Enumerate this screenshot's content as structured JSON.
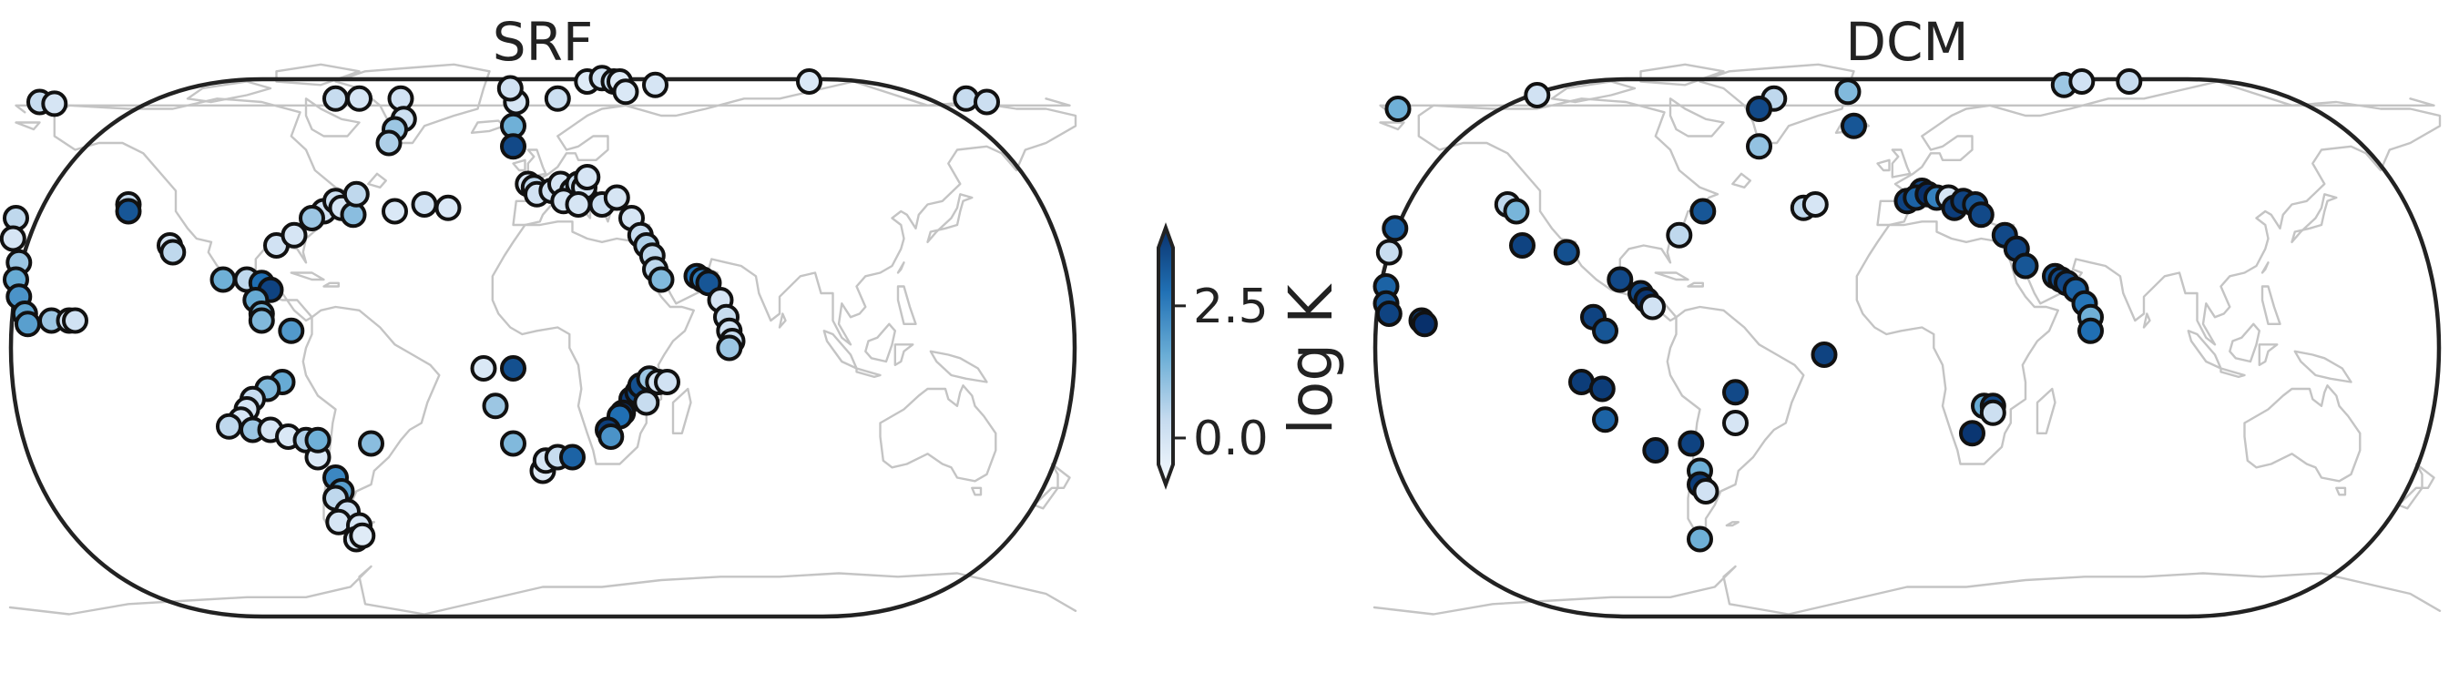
{
  "maps": [
    {
      "title": "SRF",
      "stations": [
        [
          -170,
          72,
          0.5
        ],
        [
          -165,
          71.5,
          0.2
        ],
        [
          -178,
          38,
          0.6
        ],
        [
          -179,
          32,
          0.2
        ],
        [
          -177,
          25,
          1.0
        ],
        [
          -178,
          20,
          1.6
        ],
        [
          -177,
          15,
          2.0
        ],
        [
          -175,
          10,
          1.7
        ],
        [
          -174,
          7,
          1.8
        ],
        [
          -166,
          8,
          1.0
        ],
        [
          -160,
          8,
          0.2
        ],
        [
          -158,
          8,
          0.3
        ],
        [
          -140,
          42,
          0.5
        ],
        [
          -140,
          40,
          3.0
        ],
        [
          -126,
          30,
          0.2
        ],
        [
          -125,
          28,
          0.6
        ],
        [
          -108,
          20,
          1.5
        ],
        [
          -100,
          20,
          0.6
        ],
        [
          -95,
          19,
          2.6
        ],
        [
          -92,
          17,
          3.3
        ],
        [
          -97,
          14,
          1.6
        ],
        [
          -95,
          10,
          1.5
        ],
        [
          -95,
          8,
          1.3
        ],
        [
          -85,
          5,
          1.9
        ],
        [
          -88,
          -10,
          1.6
        ],
        [
          -93,
          -12,
          1.3
        ],
        [
          -98,
          -15,
          0.5
        ],
        [
          -100,
          -18,
          0.2
        ],
        [
          -102,
          -21,
          0.2
        ],
        [
          -106,
          -23,
          0.6
        ],
        [
          -98,
          -24,
          1.0
        ],
        [
          -92,
          -24,
          0.2
        ],
        [
          -86,
          -26,
          0.1
        ],
        [
          -80,
          -27,
          0.8
        ],
        [
          -76,
          -32,
          0.1
        ],
        [
          -76,
          -27,
          1.5
        ],
        [
          -70,
          -38,
          2.2
        ],
        [
          -68,
          -42,
          1.8
        ],
        [
          -70,
          -44,
          0.6
        ],
        [
          -66,
          -48,
          0.4
        ],
        [
          -69,
          -51,
          0.2
        ],
        [
          -62,
          -52,
          0.2
        ],
        [
          -63,
          -56,
          0.1
        ],
        [
          -61,
          -55,
          0.0
        ],
        [
          -58,
          -28,
          1.2
        ],
        [
          -90,
          30,
          0.3
        ],
        [
          -84,
          33,
          0.2
        ],
        [
          -74,
          40,
          0.3
        ],
        [
          -70,
          43,
          0.4
        ],
        [
          -68,
          41,
          0.2
        ],
        [
          -64,
          39,
          1.2
        ],
        [
          -78,
          38,
          1.0
        ],
        [
          -63,
          45,
          0.6
        ],
        [
          -50,
          40,
          0.1
        ],
        [
          -40,
          42,
          0.3
        ],
        [
          -32,
          41,
          0.1
        ],
        [
          -70,
          73,
          0.5
        ],
        [
          -62,
          73,
          0.2
        ],
        [
          -48,
          73,
          0.3
        ],
        [
          -47,
          67,
          0.4
        ],
        [
          -50,
          64,
          1.0
        ],
        [
          -52,
          60,
          0.8
        ],
        [
          -10,
          65,
          1.5
        ],
        [
          -10,
          59,
          3.2
        ],
        [
          -9,
          72,
          0.2
        ],
        [
          -11,
          76,
          0.3
        ],
        [
          15,
          78,
          0.0
        ],
        [
          20,
          79,
          0.3
        ],
        [
          24,
          78,
          0.5
        ],
        [
          26,
          78,
          0.0
        ],
        [
          28,
          75,
          0.1
        ],
        [
          38,
          77,
          0.2
        ],
        [
          5,
          73,
          0.4
        ],
        [
          90,
          78,
          0.1
        ],
        [
          143,
          73,
          0.5
        ],
        [
          150,
          72,
          0.4
        ],
        [
          -5,
          48,
          0.1
        ],
        [
          -3,
          47,
          0.6
        ],
        [
          -2,
          45,
          0.3
        ],
        [
          3,
          46,
          0.3
        ],
        [
          6,
          48,
          0.2
        ],
        [
          10,
          46,
          0.6
        ],
        [
          12,
          48,
          0.5
        ],
        [
          14,
          45,
          0.5
        ],
        [
          14,
          47,
          0.2
        ],
        [
          7,
          43,
          0.2
        ],
        [
          15,
          50,
          0.2
        ],
        [
          12,
          42,
          0.2
        ],
        [
          20,
          42,
          0.4
        ],
        [
          25,
          44,
          0.2
        ],
        [
          30,
          38,
          0.2
        ],
        [
          33,
          33,
          0.5
        ],
        [
          35,
          30,
          0.8
        ],
        [
          37,
          27,
          0.6
        ],
        [
          38,
          23,
          0.6
        ],
        [
          40,
          20,
          1.3
        ],
        [
          52,
          21,
          2.6
        ],
        [
          54,
          20,
          2.4
        ],
        [
          56,
          19,
          3.0
        ],
        [
          60,
          14,
          0.2
        ],
        [
          62,
          9,
          0.5
        ],
        [
          63,
          5,
          0.3
        ],
        [
          64,
          2,
          0.5
        ],
        [
          63,
          0,
          1.0
        ],
        [
          -20,
          -6,
          0.1
        ],
        [
          -10,
          -6,
          3.1
        ],
        [
          -16,
          -17,
          1.0
        ],
        [
          -10,
          -28,
          1.3
        ],
        [
          0,
          -36,
          0.0
        ],
        [
          1,
          -33,
          0.2
        ],
        [
          5,
          -32,
          0.5
        ],
        [
          10,
          -32,
          2.8
        ],
        [
          30,
          -15,
          3.4
        ],
        [
          32,
          -13,
          3.1
        ],
        [
          33,
          -11,
          3.1
        ],
        [
          36,
          -9,
          1.0
        ],
        [
          39,
          -10,
          0.2
        ],
        [
          42,
          -10,
          0.3
        ],
        [
          35,
          -16,
          0.5
        ],
        [
          27,
          -19,
          3.5
        ],
        [
          26,
          -20,
          2.6
        ],
        [
          22,
          -24,
          3.4
        ],
        [
          23,
          -26,
          2.0
        ]
      ]
    },
    {
      "title": "DCM",
      "stations": [
        [
          -172,
          70,
          1.5
        ],
        [
          -125,
          74,
          0.3
        ],
        [
          -173,
          35,
          2.9
        ],
        [
          -175,
          28,
          0.5
        ],
        [
          -176,
          18,
          2.8
        ],
        [
          -176,
          13,
          3.0
        ],
        [
          -175,
          10,
          3.3
        ],
        [
          -164,
          8,
          3.3
        ],
        [
          -163,
          7,
          3.6
        ],
        [
          -135,
          42,
          0.6
        ],
        [
          -132,
          40,
          1.4
        ],
        [
          -130,
          30,
          3.3
        ],
        [
          -115,
          28,
          3.1
        ],
        [
          -97,
          20,
          3.2
        ],
        [
          -90,
          16,
          3.2
        ],
        [
          -88,
          14,
          3.5
        ],
        [
          -86,
          12,
          0.3
        ],
        [
          -106,
          9,
          3.3
        ],
        [
          -102,
          5,
          3.0
        ],
        [
          -110,
          -10,
          3.4
        ],
        [
          -103,
          -12,
          3.4
        ],
        [
          -102,
          -21,
          2.8
        ],
        [
          -85,
          -30,
          3.4
        ],
        [
          -73,
          -28,
          3.3
        ],
        [
          -70,
          -36,
          1.5
        ],
        [
          -70,
          -40,
          3.4
        ],
        [
          -68,
          -42,
          0.3
        ],
        [
          -70,
          -56,
          1.5
        ],
        [
          -58,
          -13,
          3.2
        ],
        [
          -58,
          -22,
          0.2
        ],
        [
          -28,
          -2,
          3.3
        ],
        [
          -77,
          33,
          0.6
        ],
        [
          -69,
          40,
          3.0
        ],
        [
          -35,
          41,
          0.6
        ],
        [
          -31,
          42,
          0.2
        ],
        [
          -50,
          59,
          1.1
        ],
        [
          -45,
          73,
          0.6
        ],
        [
          -18,
          65,
          3.0
        ],
        [
          -20,
          75,
          1.3
        ],
        [
          -50,
          70,
          3.2
        ],
        [
          0,
          43,
          3.3
        ],
        [
          5,
          46,
          3.2
        ],
        [
          3,
          44,
          2.8
        ],
        [
          7,
          45,
          3.6
        ],
        [
          10,
          44,
          2.3
        ],
        [
          14,
          44,
          0.2
        ],
        [
          16,
          41,
          3.4
        ],
        [
          19,
          43,
          3.3
        ],
        [
          23,
          42,
          3.0
        ],
        [
          25,
          39,
          3.2
        ],
        [
          33,
          33,
          3.2
        ],
        [
          37,
          29,
          3.3
        ],
        [
          40,
          24,
          3.0
        ],
        [
          50,
          21,
          3.0
        ],
        [
          52,
          20,
          3.2
        ],
        [
          54,
          19,
          3.2
        ],
        [
          57,
          17,
          2.8
        ],
        [
          60,
          13,
          2.5
        ],
        [
          62,
          9,
          1.5
        ],
        [
          62,
          5,
          2.6
        ],
        [
          26,
          -17,
          1.6
        ],
        [
          29,
          -17,
          3.2
        ],
        [
          29,
          -19,
          0.4
        ],
        [
          22,
          -25,
          3.5
        ],
        [
          53,
          77,
          1.0
        ],
        [
          59,
          78,
          0.3
        ],
        [
          75,
          78,
          0.5
        ]
      ]
    }
  ],
  "colorbar": {
    "label": "log K",
    "ticks": [
      {
        "value": 2.5,
        "label": "2.5"
      },
      {
        "value": 0.0,
        "label": "0.0"
      }
    ],
    "vmin": -0.5,
    "vmax": 3.6,
    "extend": "both",
    "colors": [
      "#f7fbff",
      "#c6dbef",
      "#6baed6",
      "#2171b5",
      "#08306b"
    ]
  },
  "colors": {
    "coastline": "#c4c4c4",
    "frame": "#222222",
    "marker_edge": "#111111"
  }
}
